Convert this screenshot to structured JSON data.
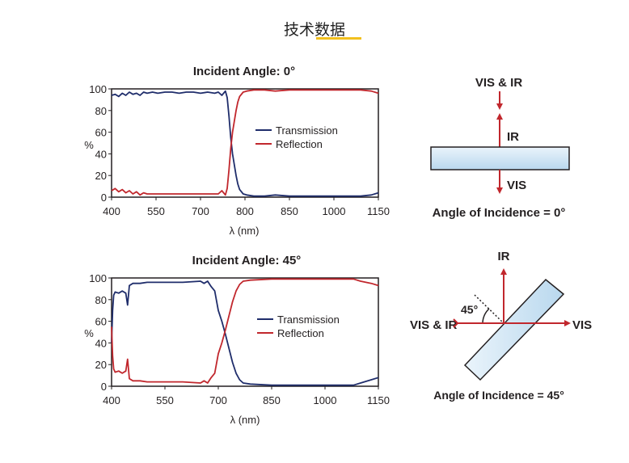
{
  "page": {
    "title": "技术数据"
  },
  "chart_data": [
    {
      "type": "line",
      "title": "Incident Angle: 0°",
      "xlabel": "λ (nm)",
      "ylabel": "%",
      "xlim": [
        400,
        1150
      ],
      "ylim": [
        0,
        100
      ],
      "xticks": [
        400,
        550,
        700,
        800,
        850,
        1000,
        1150
      ],
      "yticks": [
        0,
        20,
        40,
        60,
        80,
        100
      ],
      "legend_position": "center-right",
      "series": [
        {
          "name": "Transmission",
          "color": "#1f2d6b",
          "x": [
            400,
            410,
            420,
            430,
            440,
            450,
            460,
            470,
            480,
            490,
            500,
            515,
            530,
            550,
            570,
            590,
            610,
            630,
            650,
            670,
            690,
            700,
            710,
            720,
            725,
            730,
            735,
            740,
            745,
            750,
            755,
            760,
            770,
            780,
            800,
            830,
            860,
            900,
            950,
            1000,
            1050,
            1100,
            1130,
            1150
          ],
          "y": [
            94,
            95,
            93,
            96,
            94,
            97,
            95,
            96,
            94,
            97,
            96,
            97,
            96,
            97,
            97,
            96,
            97,
            97,
            96,
            97,
            96,
            97,
            94,
            98,
            92,
            75,
            55,
            40,
            30,
            20,
            12,
            7,
            3,
            2,
            1,
            1,
            2,
            1,
            1,
            1,
            1,
            1,
            2,
            4
          ]
        },
        {
          "name": "Reflection",
          "color": "#c1272d",
          "x": [
            400,
            410,
            420,
            430,
            440,
            450,
            460,
            470,
            480,
            490,
            500,
            515,
            530,
            550,
            570,
            590,
            610,
            630,
            650,
            670,
            690,
            700,
            710,
            720,
            725,
            730,
            735,
            740,
            745,
            750,
            755,
            760,
            770,
            780,
            800,
            830,
            860,
            900,
            950,
            1000,
            1050,
            1100,
            1130,
            1150
          ],
          "y": [
            6,
            8,
            5,
            7,
            4,
            6,
            3,
            5,
            2,
            4,
            3,
            3,
            3,
            3,
            3,
            3,
            3,
            3,
            3,
            3,
            3,
            3,
            6,
            2,
            8,
            25,
            45,
            60,
            70,
            80,
            88,
            93,
            97,
            98,
            99,
            99,
            98,
            99,
            99,
            99,
            99,
            99,
            98,
            96
          ]
        }
      ]
    },
    {
      "type": "line",
      "title": "Incident Angle: 45°",
      "xlabel": "λ (nm)",
      "ylabel": "%",
      "xlim": [
        400,
        1150
      ],
      "ylim": [
        0,
        100
      ],
      "xticks": [
        400,
        550,
        700,
        850,
        1000,
        1150
      ],
      "yticks": [
        0,
        20,
        40,
        60,
        80,
        100
      ],
      "legend_position": "center-right",
      "series": [
        {
          "name": "Transmission",
          "color": "#1f2d6b",
          "x": [
            400,
            403,
            406,
            410,
            420,
            430,
            440,
            445,
            450,
            460,
            480,
            500,
            550,
            600,
            650,
            660,
            670,
            680,
            690,
            700,
            710,
            720,
            730,
            740,
            750,
            760,
            770,
            790,
            850,
            900,
            950,
            1000,
            1050,
            1080,
            1100,
            1130,
            1150
          ],
          "y": [
            40,
            70,
            84,
            87,
            86,
            88,
            86,
            75,
            93,
            95,
            95,
            96,
            96,
            96,
            97,
            95,
            97,
            92,
            88,
            70,
            60,
            48,
            35,
            22,
            12,
            6,
            3,
            2,
            1,
            1,
            1,
            1,
            1,
            1,
            3,
            6,
            8
          ]
        },
        {
          "name": "Reflection",
          "color": "#c1272d",
          "x": [
            400,
            403,
            406,
            410,
            420,
            430,
            440,
            445,
            450,
            460,
            480,
            500,
            550,
            600,
            650,
            660,
            670,
            680,
            690,
            700,
            710,
            720,
            730,
            740,
            750,
            760,
            770,
            790,
            850,
            900,
            950,
            1000,
            1050,
            1080,
            1100,
            1130,
            1150
          ],
          "y": [
            55,
            28,
            16,
            13,
            14,
            12,
            14,
            25,
            7,
            5,
            5,
            4,
            4,
            4,
            3,
            5,
            3,
            8,
            12,
            30,
            40,
            52,
            65,
            78,
            88,
            94,
            97,
            98,
            99,
            99,
            99,
            99,
            99,
            99,
            97,
            95,
            93
          ]
        }
      ]
    }
  ],
  "diagrams": {
    "top": {
      "incoming": "VIS & IR",
      "reflected": "IR",
      "transmitted": "VIS",
      "caption": "Angle of Incidence = 0°"
    },
    "bottom": {
      "incoming": "VIS & IR",
      "reflected": "IR",
      "transmitted": "VIS",
      "angle": "45°",
      "caption": "Angle of Incidence = 45°"
    }
  }
}
